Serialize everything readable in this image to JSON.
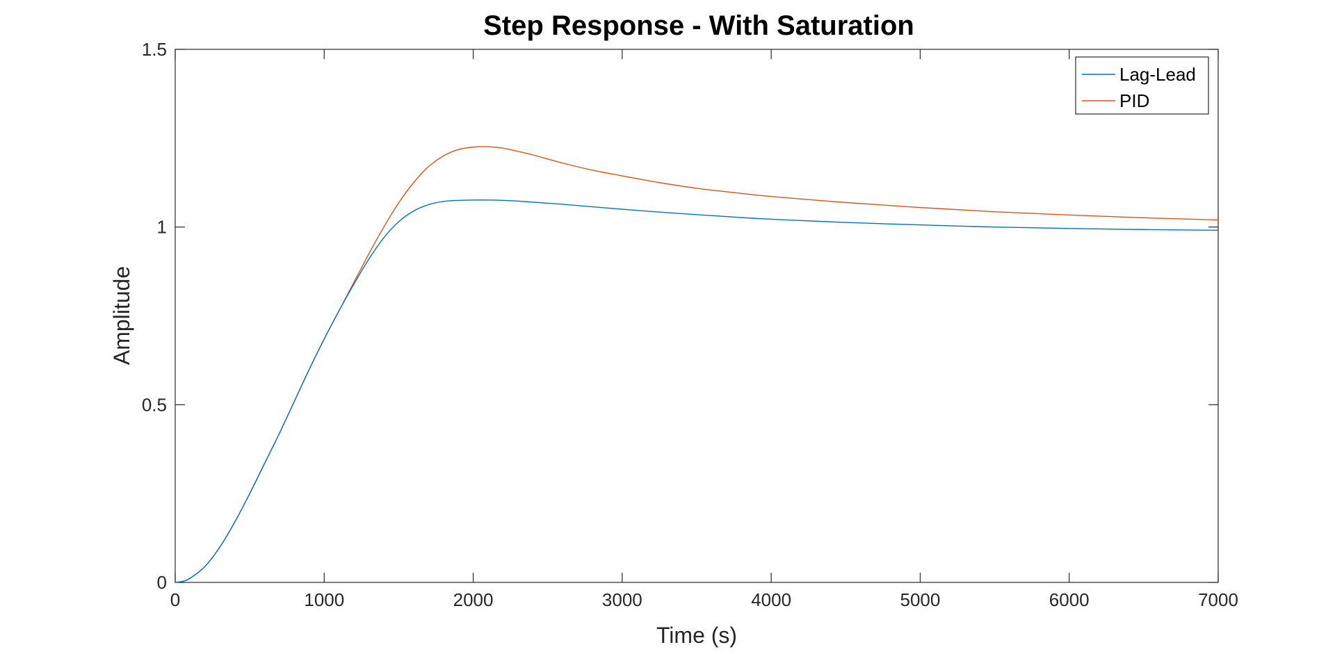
{
  "chart_data": {
    "type": "line",
    "title": "Step Response - With Saturation",
    "xlabel": "Time (s)",
    "ylabel": "Amplitude",
    "xlim": [
      0,
      7000
    ],
    "ylim": [
      0,
      1.5
    ],
    "xticks": [
      0,
      1000,
      2000,
      3000,
      4000,
      5000,
      6000,
      7000
    ],
    "xtick_labels": [
      "0",
      "1000",
      "2000",
      "3000",
      "4000",
      "5000",
      "6000",
      "7000"
    ],
    "yticks": [
      0,
      0.5,
      1,
      1.5
    ],
    "ytick_labels": [
      "0",
      "0.5",
      "1",
      "1.5"
    ],
    "grid": false,
    "legend_position": "top-right",
    "series": [
      {
        "name": "Lag-Lead",
        "color": "#0072BD",
        "x": [
          0,
          50,
          100,
          200,
          300,
          400,
          500,
          600,
          700,
          800,
          900,
          1000,
          1100,
          1200,
          1300,
          1400,
          1500,
          1600,
          1700,
          1800,
          1900,
          2000,
          2100,
          2200,
          2300,
          2400,
          2600,
          2800,
          3000,
          3250,
          3500,
          3750,
          4000,
          4500,
          5000,
          5500,
          6000,
          6500,
          7000
        ],
        "y": [
          0,
          0.003,
          0.012,
          0.045,
          0.1,
          0.17,
          0.25,
          0.335,
          0.42,
          0.51,
          0.6,
          0.685,
          0.765,
          0.84,
          0.91,
          0.97,
          1.015,
          1.045,
          1.063,
          1.072,
          1.075,
          1.076,
          1.076,
          1.075,
          1.073,
          1.07,
          1.064,
          1.057,
          1.05,
          1.042,
          1.035,
          1.028,
          1.022,
          1.013,
          1.006,
          1.0,
          0.996,
          0.993,
          0.991
        ]
      },
      {
        "name": "PID",
        "color": "#D95319",
        "x": [
          0,
          50,
          100,
          200,
          300,
          400,
          500,
          600,
          700,
          800,
          900,
          1000,
          1100,
          1200,
          1300,
          1400,
          1500,
          1600,
          1700,
          1800,
          1900,
          2000,
          2100,
          2200,
          2300,
          2400,
          2600,
          2800,
          3000,
          3250,
          3500,
          3750,
          4000,
          4500,
          5000,
          5500,
          6000,
          6500,
          7000
        ],
        "y": [
          0,
          0.003,
          0.012,
          0.045,
          0.1,
          0.17,
          0.25,
          0.335,
          0.42,
          0.51,
          0.6,
          0.685,
          0.765,
          0.845,
          0.925,
          1.0,
          1.068,
          1.125,
          1.17,
          1.2,
          1.218,
          1.225,
          1.226,
          1.222,
          1.213,
          1.203,
          1.18,
          1.16,
          1.144,
          1.125,
          1.109,
          1.097,
          1.086,
          1.069,
          1.055,
          1.043,
          1.034,
          1.026,
          1.02
        ]
      }
    ]
  }
}
